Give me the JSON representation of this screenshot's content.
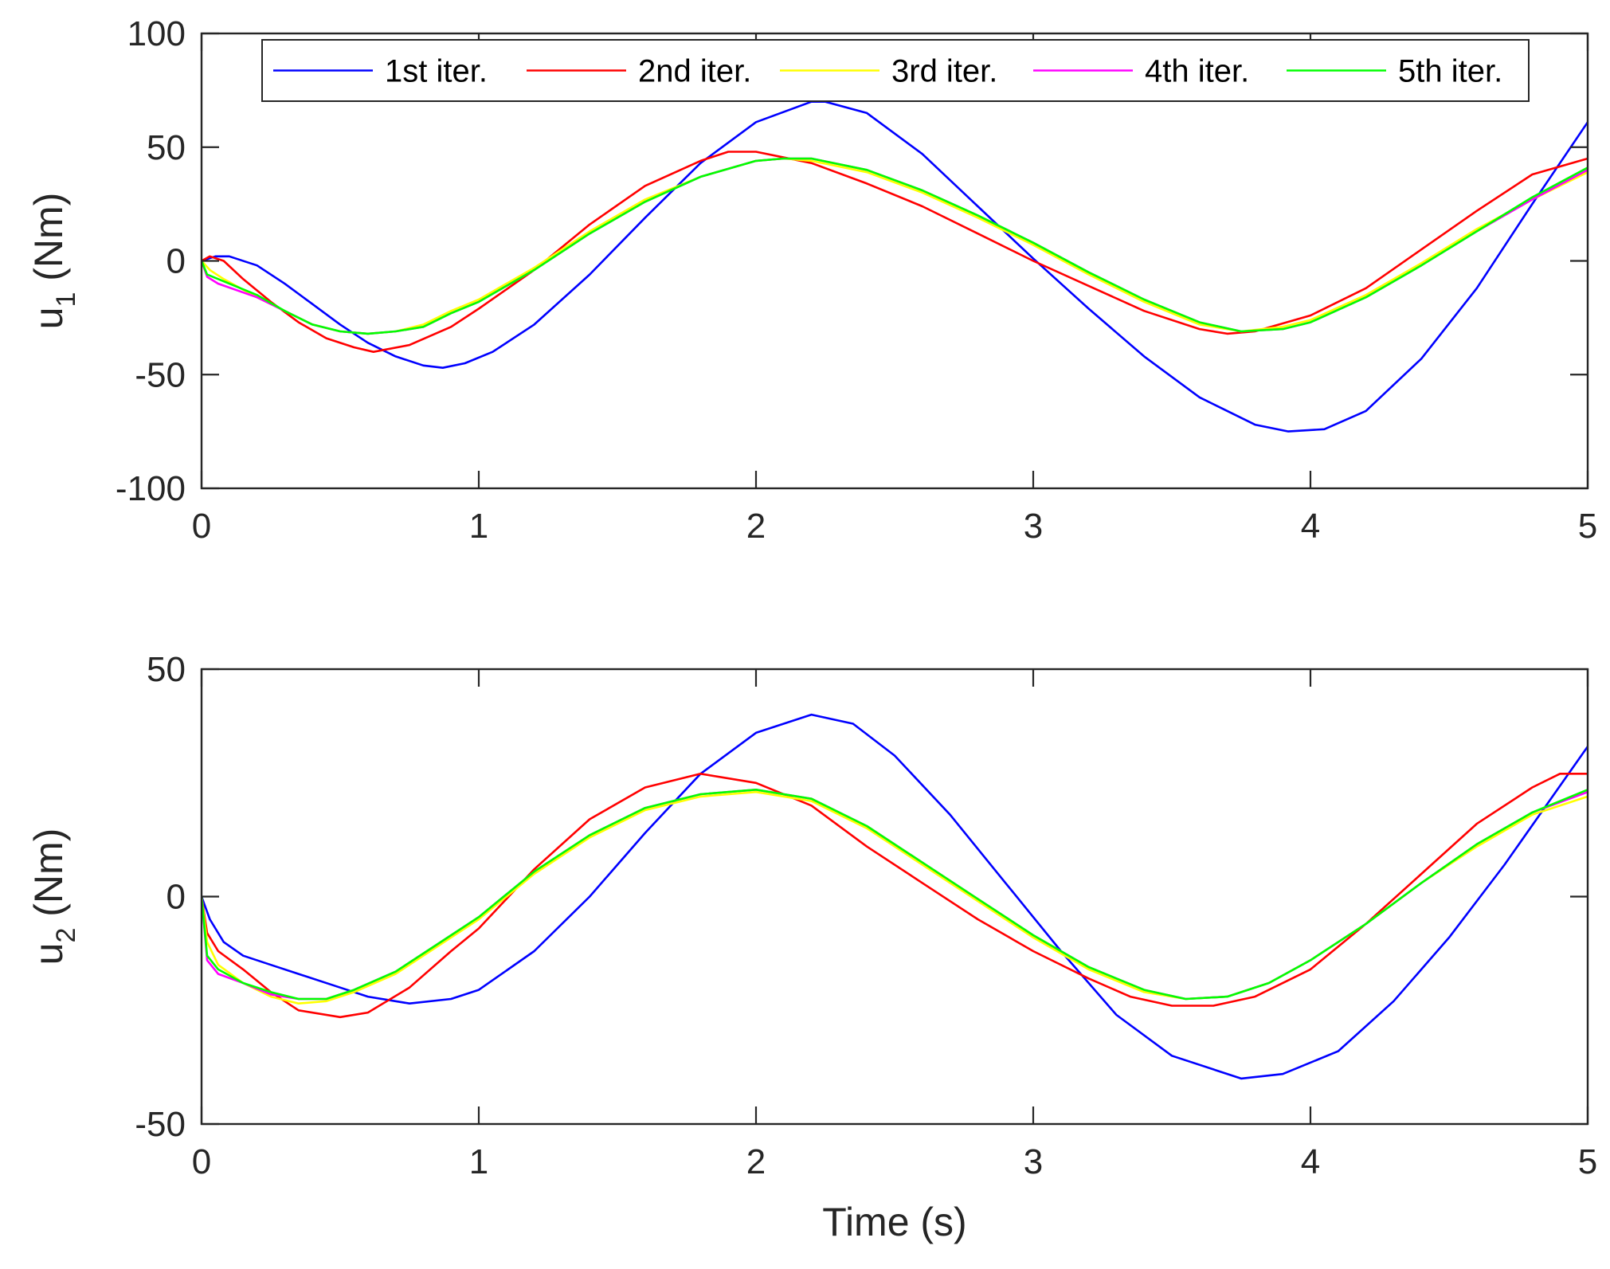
{
  "chart_data": [
    {
      "type": "line",
      "ylabel": "u",
      "ylabel_sub": "1",
      "ylabel_unit": "(Nm)",
      "xlabel": "",
      "xlim": [
        0,
        5
      ],
      "ylim": [
        -100,
        100
      ],
      "xticks": [
        0,
        1,
        2,
        3,
        4,
        5
      ],
      "yticks": [
        100,
        50,
        0,
        -50,
        -100
      ],
      "legend_position": "top",
      "series": [
        {
          "name": "1st iter.",
          "color": "#0000ff",
          "x": [
            0,
            0.05,
            0.1,
            0.2,
            0.3,
            0.4,
            0.5,
            0.6,
            0.7,
            0.8,
            0.87,
            0.95,
            1.05,
            1.2,
            1.4,
            1.6,
            1.8,
            2.0,
            2.2,
            2.25,
            2.4,
            2.6,
            2.8,
            3.0,
            3.2,
            3.4,
            3.6,
            3.8,
            3.92,
            4.05,
            4.2,
            4.4,
            4.6,
            4.8,
            5.0
          ],
          "y": [
            0,
            2,
            2,
            -2,
            -10,
            -19,
            -28,
            -36,
            -42,
            -46,
            -47,
            -45,
            -40,
            -28,
            -6,
            19,
            43,
            61,
            70,
            70,
            65,
            47,
            24,
            1,
            -21,
            -42,
            -60,
            -72,
            -75,
            -74,
            -66,
            -43,
            -12,
            25,
            61
          ]
        },
        {
          "name": "2nd iter.",
          "color": "#ff0000",
          "x": [
            0,
            0.03,
            0.08,
            0.15,
            0.25,
            0.35,
            0.45,
            0.55,
            0.62,
            0.75,
            0.9,
            1.0,
            1.2,
            1.4,
            1.6,
            1.8,
            1.9,
            2.0,
            2.2,
            2.4,
            2.6,
            2.8,
            3.0,
            3.2,
            3.4,
            3.6,
            3.7,
            3.8,
            4.0,
            4.2,
            4.4,
            4.6,
            4.8,
            5.0
          ],
          "y": [
            0,
            2,
            0,
            -8,
            -18,
            -27,
            -34,
            -38,
            -40,
            -37,
            -29,
            -21,
            -4,
            16,
            33,
            44,
            48,
            48,
            43,
            34,
            24,
            12,
            0,
            -11,
            -22,
            -30,
            -32,
            -31,
            -24,
            -12,
            5,
            22,
            38,
            45
          ]
        },
        {
          "name": "3rd iter.",
          "color": "#ffff00",
          "x": [
            0,
            0.03,
            0.08,
            0.2,
            0.3,
            0.4,
            0.5,
            0.6,
            0.7,
            0.8,
            0.9,
            1.0,
            1.2,
            1.4,
            1.6,
            1.8,
            2.0,
            2.1,
            2.2,
            2.4,
            2.6,
            2.8,
            3.0,
            3.2,
            3.4,
            3.6,
            3.75,
            3.9,
            4.0,
            4.2,
            4.4,
            4.6,
            4.8,
            5.0
          ],
          "y": [
            0,
            -4,
            -8,
            -16,
            -22,
            -28,
            -31,
            -32,
            -31,
            -28,
            -22,
            -17,
            -3,
            13,
            27,
            37,
            44,
            45,
            44,
            39,
            30,
            19,
            7,
            -6,
            -18,
            -28,
            -31,
            -29,
            -26,
            -15,
            -1,
            14,
            27,
            39
          ]
        },
        {
          "name": "4th iter.",
          "color": "#ff00ff",
          "x": [
            0,
            0.02,
            0.06,
            0.2,
            0.3,
            0.4,
            0.5,
            0.6,
            0.7,
            0.8,
            0.9,
            1.0,
            1.2,
            1.4,
            1.6,
            1.8,
            2.0,
            2.1,
            2.2,
            2.4,
            2.6,
            2.8,
            3.0,
            3.2,
            3.4,
            3.6,
            3.75,
            3.9,
            4.0,
            4.2,
            4.4,
            4.6,
            4.8,
            5.0
          ],
          "y": [
            0,
            -7,
            -10,
            -16,
            -22,
            -28,
            -31,
            -32,
            -31,
            -29,
            -23,
            -18,
            -4,
            12,
            26,
            37,
            44,
            45,
            45,
            40,
            31,
            20,
            8,
            -5,
            -17,
            -27,
            -31,
            -30,
            -27,
            -16,
            -2,
            13,
            27,
            40
          ]
        },
        {
          "name": "5th iter.",
          "color": "#00ff00",
          "x": [
            0,
            0.02,
            0.06,
            0.2,
            0.3,
            0.4,
            0.5,
            0.6,
            0.7,
            0.8,
            0.9,
            1.0,
            1.2,
            1.4,
            1.6,
            1.8,
            2.0,
            2.1,
            2.2,
            2.4,
            2.6,
            2.8,
            3.0,
            3.2,
            3.4,
            3.6,
            3.75,
            3.9,
            4.0,
            4.2,
            4.4,
            4.6,
            4.8,
            5.0
          ],
          "y": [
            0,
            -6,
            -8,
            -15,
            -22,
            -28,
            -31,
            -32,
            -31,
            -29,
            -23,
            -18,
            -4,
            12,
            26,
            37,
            44,
            45,
            45,
            40,
            31,
            20,
            8,
            -5,
            -17,
            -27,
            -31,
            -30,
            -27,
            -16,
            -2,
            13,
            28,
            41
          ]
        }
      ]
    },
    {
      "type": "line",
      "ylabel": "u",
      "ylabel_sub": "2",
      "ylabel_unit": "(Nm)",
      "xlabel": "Time (s)",
      "xlim": [
        0,
        5
      ],
      "ylim": [
        -50,
        50
      ],
      "xticks": [
        0,
        1,
        2,
        3,
        4,
        5
      ],
      "yticks": [
        50,
        0,
        -50
      ],
      "series": [
        {
          "name": "1st iter.",
          "color": "#0000ff",
          "x": [
            0,
            0.03,
            0.08,
            0.15,
            0.25,
            0.35,
            0.5,
            0.6,
            0.75,
            0.9,
            1.0,
            1.2,
            1.4,
            1.6,
            1.8,
            2.0,
            2.2,
            2.35,
            2.5,
            2.7,
            2.9,
            3.1,
            3.3,
            3.5,
            3.75,
            3.9,
            4.1,
            4.3,
            4.5,
            4.7,
            4.85,
            5.0
          ],
          "y": [
            0,
            -5,
            -10,
            -13,
            -15,
            -17,
            -20,
            -22,
            -23.5,
            -22.5,
            -20.5,
            -12,
            0,
            14,
            27,
            36,
            40,
            38,
            31,
            18,
            3,
            -12,
            -26,
            -35,
            -40,
            -39,
            -34,
            -23,
            -9,
            7,
            20,
            33
          ]
        },
        {
          "name": "2nd iter.",
          "color": "#ff0000",
          "x": [
            0,
            0.02,
            0.06,
            0.15,
            0.25,
            0.35,
            0.5,
            0.6,
            0.75,
            0.9,
            1.0,
            1.2,
            1.4,
            1.6,
            1.8,
            2.0,
            2.2,
            2.4,
            2.6,
            2.8,
            3.0,
            3.2,
            3.35,
            3.5,
            3.65,
            3.8,
            4.0,
            4.2,
            4.4,
            4.6,
            4.8,
            4.9,
            5.0
          ],
          "y": [
            0,
            -8,
            -12,
            -16,
            -21,
            -25,
            -26.5,
            -25.5,
            -20,
            -12,
            -7,
            6,
            17,
            24,
            27,
            25,
            20,
            11,
            3,
            -5,
            -12,
            -18,
            -22,
            -24,
            -24,
            -22,
            -16,
            -6,
            5,
            16,
            24,
            27,
            27
          ]
        },
        {
          "name": "3rd iter.",
          "color": "#ffff00",
          "x": [
            0,
            0.02,
            0.06,
            0.15,
            0.25,
            0.35,
            0.45,
            0.55,
            0.7,
            0.85,
            1.0,
            1.2,
            1.4,
            1.6,
            1.8,
            2.0,
            2.2,
            2.4,
            2.6,
            2.8,
            3.0,
            3.2,
            3.4,
            3.55,
            3.7,
            3.85,
            4.0,
            4.2,
            4.4,
            4.6,
            4.8,
            5.0
          ],
          "y": [
            0,
            -10,
            -15,
            -19,
            -22,
            -23.5,
            -23,
            -21,
            -17,
            -11,
            -5,
            5,
            13,
            19,
            22,
            23,
            21,
            15,
            7,
            -1,
            -9,
            -16,
            -21,
            -22.5,
            -22,
            -19,
            -14,
            -6,
            3,
            11,
            18,
            22
          ]
        },
        {
          "name": "4th iter.",
          "color": "#ff00ff",
          "x": [
            0,
            0.02,
            0.06,
            0.15,
            0.25,
            0.35,
            0.45,
            0.55,
            0.7,
            0.85,
            1.0,
            1.2,
            1.4,
            1.6,
            1.8,
            2.0,
            2.2,
            2.4,
            2.6,
            2.8,
            3.0,
            3.2,
            3.4,
            3.55,
            3.7,
            3.85,
            4.0,
            4.2,
            4.4,
            4.6,
            4.8,
            5.0
          ],
          "y": [
            0,
            -14,
            -17,
            -19,
            -21.5,
            -22.5,
            -22.5,
            -20.5,
            -16.5,
            -10.5,
            -4.5,
            5.5,
            13.5,
            19.5,
            22.5,
            23.5,
            21.5,
            15.5,
            7.5,
            -0.5,
            -8.5,
            -15.5,
            -20.5,
            -22.5,
            -22,
            -19,
            -14,
            -6,
            3,
            11.5,
            18.5,
            23
          ]
        },
        {
          "name": "5th iter.",
          "color": "#00ff00",
          "x": [
            0,
            0.02,
            0.06,
            0.15,
            0.25,
            0.35,
            0.45,
            0.55,
            0.7,
            0.85,
            1.0,
            1.2,
            1.4,
            1.6,
            1.8,
            2.0,
            2.2,
            2.4,
            2.6,
            2.8,
            3.0,
            3.2,
            3.4,
            3.55,
            3.7,
            3.85,
            4.0,
            4.2,
            4.4,
            4.6,
            4.8,
            5.0
          ],
          "y": [
            0,
            -13,
            -16,
            -19,
            -21,
            -22.5,
            -22.5,
            -20.5,
            -16.5,
            -10.5,
            -4.5,
            5.5,
            13.5,
            19.5,
            22.5,
            23.5,
            21.5,
            15.5,
            7.5,
            -0.5,
            -8.5,
            -15.5,
            -20.5,
            -22.5,
            -22,
            -19,
            -14,
            -6,
            3,
            11.5,
            18.5,
            23.5
          ]
        }
      ]
    }
  ]
}
